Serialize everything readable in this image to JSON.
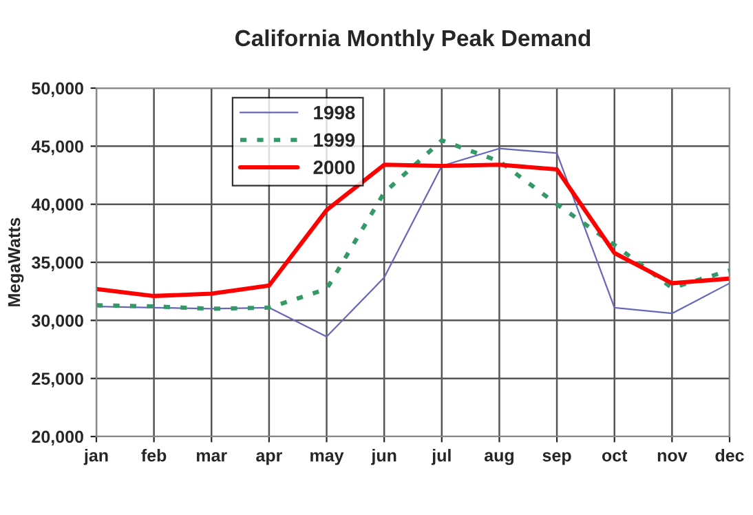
{
  "chart_data": {
    "type": "line",
    "title": "California Monthly Peak Demand",
    "ylabel": "MegaWatts",
    "categories": [
      "jan",
      "feb",
      "mar",
      "apr",
      "may",
      "jun",
      "jul",
      "aug",
      "sep",
      "oct",
      "nov",
      "dec"
    ],
    "series": [
      {
        "name": "1998",
        "color": "#6666bb",
        "line_style": "solid",
        "values": [
          31200,
          31100,
          31000,
          31100,
          28600,
          33700,
          43300,
          44800,
          44400,
          31100,
          30600,
          33200
        ]
      },
      {
        "name": "1999",
        "color": "#339966",
        "line_style": "dotted",
        "values": [
          31300,
          31200,
          31000,
          31100,
          32700,
          41000,
          45500,
          43700,
          40000,
          36500,
          32800,
          34300
        ]
      },
      {
        "name": "2000",
        "color": "#ff0000",
        "line_style": "solid",
        "values": [
          32700,
          32100,
          32300,
          33000,
          39500,
          43400,
          43300,
          43400,
          43000,
          35800,
          33200,
          33600
        ]
      }
    ],
    "ylim": [
      20000,
      50000
    ],
    "yticks": [
      {
        "value": 20000,
        "label": "20,000"
      },
      {
        "value": 25000,
        "label": "25,000"
      },
      {
        "value": 30000,
        "label": "30,000"
      },
      {
        "value": 35000,
        "label": "35,000"
      },
      {
        "value": 40000,
        "label": "40,000"
      },
      {
        "value": 45000,
        "label": "45,000"
      },
      {
        "value": 50000,
        "label": "50,000"
      }
    ],
    "grid": true,
    "legend": "top left",
    "marker": "none"
  }
}
